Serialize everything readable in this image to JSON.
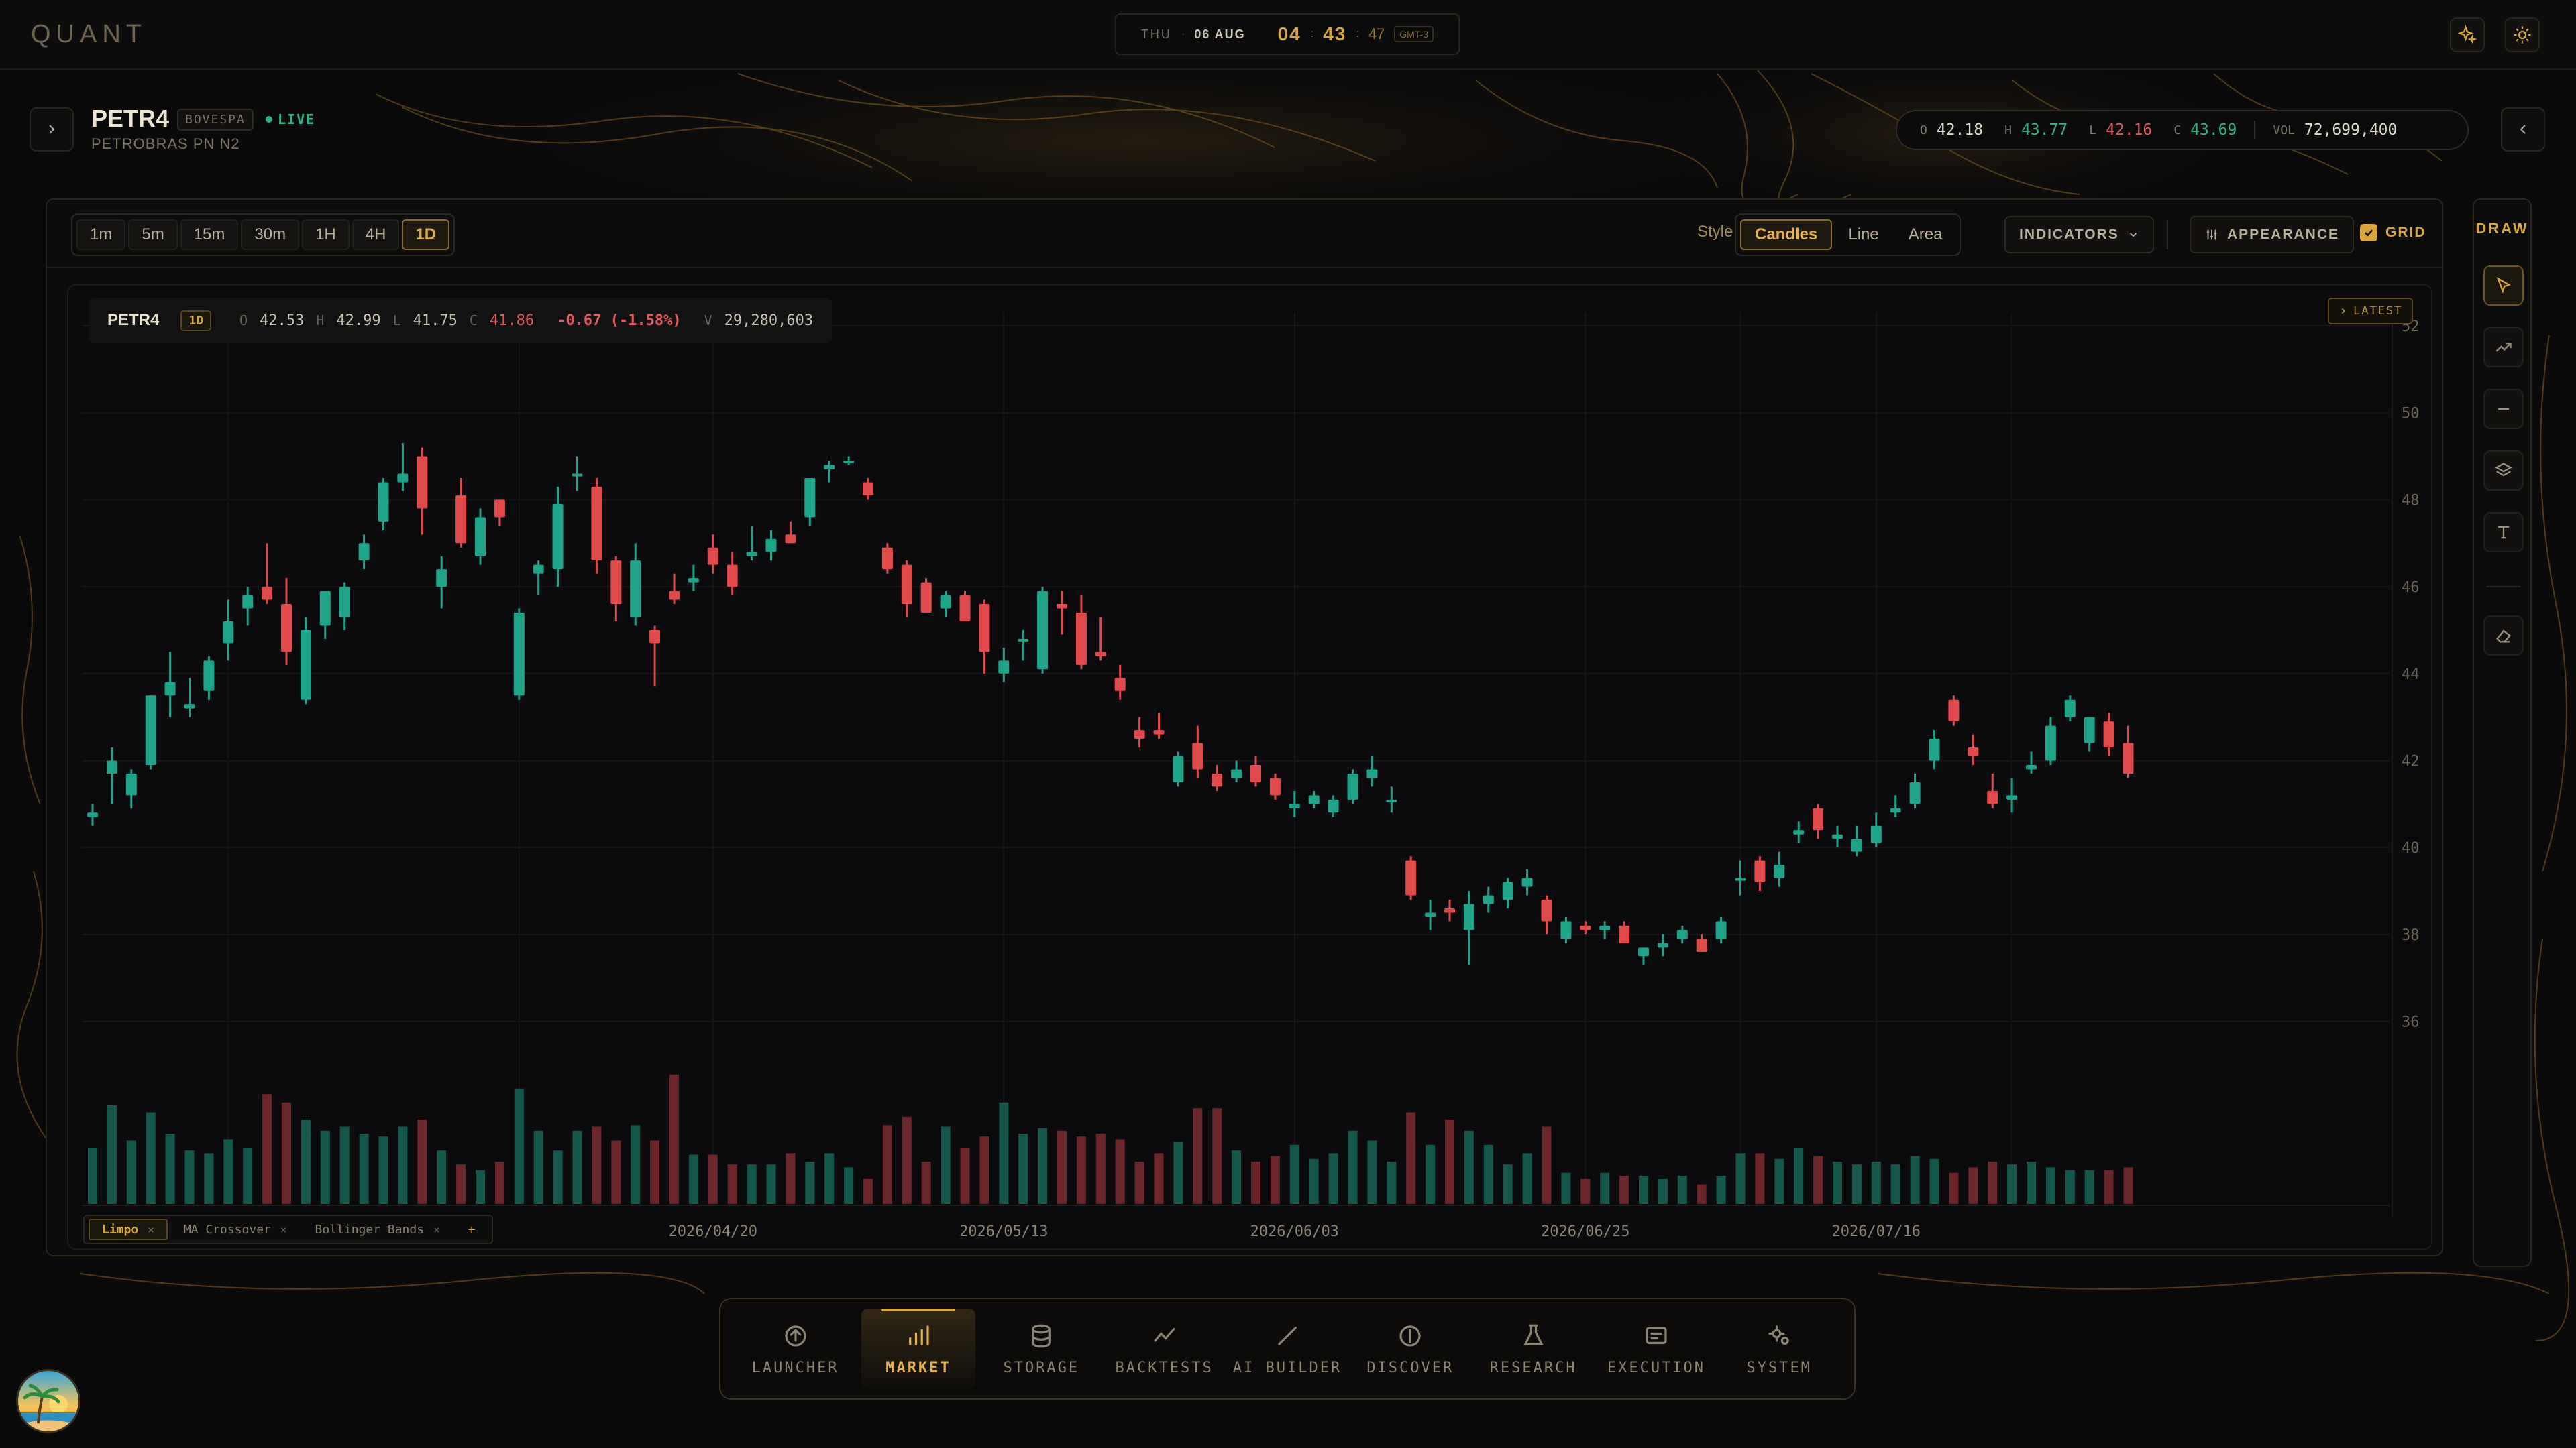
{
  "app": {
    "logo": "QUANT"
  },
  "clock": {
    "day": "THU",
    "date": "06 AUG",
    "hour": "04",
    "minute": "43",
    "second": "47",
    "tz": "GMT-3"
  },
  "ticker": {
    "symbol": "PETR4",
    "exchange": "BOVESPA",
    "status": "LIVE",
    "description": "PETROBRAS PN N2",
    "summary": {
      "o_label": "O",
      "o": "42.18",
      "h_label": "H",
      "h": "43.77",
      "l_label": "L",
      "l": "42.16",
      "c_label": "C",
      "c": "43.69",
      "vol_label": "VOL",
      "vol": "72,699,400"
    }
  },
  "toolbar": {
    "timeframes": [
      "1m",
      "5m",
      "15m",
      "30m",
      "1H",
      "4H",
      "1D"
    ],
    "active_timeframe": "1D",
    "style_label": "Style",
    "styles": [
      "Candles",
      "Line",
      "Area"
    ],
    "active_style": "Candles",
    "indicators_label": "INDICATORS",
    "appearance_label": "APPEARANCE",
    "grid_label": "GRID",
    "grid_on": true
  },
  "legend": {
    "symbol": "PETR4",
    "tf": "1D",
    "o_label": "O",
    "o": "42.53",
    "h_label": "H",
    "h": "42.99",
    "l_label": "L",
    "l": "41.75",
    "c_label": "C",
    "c": "41.86",
    "change": "-0.67 (-1.58%)",
    "v_label": "V",
    "v": "29,280,603"
  },
  "latest_label": "LATEST",
  "studies": [
    {
      "name": "Limpo",
      "active": true
    },
    {
      "name": "MA Crossover",
      "active": false
    },
    {
      "name": "Bollinger Bands",
      "active": false
    }
  ],
  "studies_add": "+",
  "draw": {
    "title": "DRAW",
    "tools": [
      "cursor-icon",
      "trend-line-icon",
      "horizontal-line-icon",
      "layers-icon",
      "text-icon",
      "eraser-icon"
    ]
  },
  "dock": [
    {
      "label": "LAUNCHER",
      "icon": "launcher-icon"
    },
    {
      "label": "MARKET",
      "icon": "market-icon",
      "active": true
    },
    {
      "label": "STORAGE",
      "icon": "storage-icon"
    },
    {
      "label": "BACKTESTS",
      "icon": "backtests-icon"
    },
    {
      "label": "AI BUILDER",
      "icon": "ai-builder-icon"
    },
    {
      "label": "DISCOVER",
      "icon": "discover-icon"
    },
    {
      "label": "RESEARCH",
      "icon": "research-icon"
    },
    {
      "label": "EXECUTION",
      "icon": "execution-icon"
    },
    {
      "label": "SYSTEM",
      "icon": "system-icon"
    }
  ],
  "colors": {
    "accent": "#d8a63d",
    "up": "#1fa38a",
    "down": "#e04a4a",
    "bg": "#0a0a0b"
  },
  "chart_data": {
    "type": "candlestick",
    "y_ticks": [
      36,
      38,
      40,
      42,
      44,
      46,
      48,
      50,
      52
    ],
    "ylim": [
      35.5,
      52
    ],
    "x_ticks": [
      {
        "label": "2026/04/20",
        "index": 32
      },
      {
        "label": "2026/05/13",
        "index": 47
      },
      {
        "label": "2026/06/03",
        "index": 62
      },
      {
        "label": "2026/06/25",
        "index": 77
      },
      {
        "label": "2026/07/16",
        "index": 92
      }
    ],
    "grid": true,
    "volume_scale_max": 100,
    "candles": [
      [
        40.7,
        41.0,
        40.5,
        40.8,
        40
      ],
      [
        41.7,
        42.3,
        41.0,
        42.0,
        70
      ],
      [
        41.2,
        41.8,
        40.9,
        41.7,
        45
      ],
      [
        41.9,
        43.5,
        41.8,
        43.5,
        65
      ],
      [
        43.5,
        44.5,
        43.0,
        43.8,
        50
      ],
      [
        43.2,
        43.9,
        43.0,
        43.3,
        38
      ],
      [
        43.6,
        44.4,
        43.4,
        44.3,
        36
      ],
      [
        44.7,
        45.7,
        44.3,
        45.2,
        46
      ],
      [
        45.5,
        46.0,
        45.1,
        45.8,
        40
      ],
      [
        46.0,
        47.0,
        45.6,
        45.7,
        78
      ],
      [
        45.6,
        46.2,
        44.2,
        44.5,
        72
      ],
      [
        43.4,
        45.3,
        43.3,
        45.0,
        60
      ],
      [
        45.1,
        45.9,
        44.8,
        45.9,
        52
      ],
      [
        45.3,
        46.1,
        45.0,
        46.0,
        55
      ],
      [
        46.6,
        47.2,
        46.4,
        47.0,
        50
      ],
      [
        47.5,
        48.5,
        47.3,
        48.4,
        48
      ],
      [
        48.4,
        49.3,
        48.2,
        48.6,
        55
      ],
      [
        49.0,
        49.2,
        47.2,
        47.8,
        60
      ],
      [
        46.0,
        46.7,
        45.5,
        46.4,
        38
      ],
      [
        48.1,
        48.5,
        46.9,
        47.0,
        28
      ],
      [
        46.7,
        47.8,
        46.5,
        47.6,
        24
      ],
      [
        48.0,
        48.0,
        47.4,
        47.6,
        30
      ],
      [
        43.5,
        45.5,
        43.4,
        45.4,
        82
      ],
      [
        46.3,
        46.6,
        45.8,
        46.5,
        52
      ],
      [
        46.4,
        48.3,
        46.0,
        47.9,
        38
      ],
      [
        48.6,
        49.0,
        48.2,
        48.6,
        52
      ],
      [
        48.3,
        48.5,
        46.3,
        46.6,
        55
      ],
      [
        46.6,
        46.7,
        45.2,
        45.6,
        45
      ],
      [
        45.3,
        47.0,
        45.1,
        46.6,
        56
      ],
      [
        45.0,
        45.1,
        43.7,
        44.7,
        45
      ],
      [
        45.9,
        46.3,
        45.6,
        45.7,
        92
      ],
      [
        46.1,
        46.5,
        45.9,
        46.2,
        35
      ],
      [
        46.9,
        47.2,
        46.3,
        46.5,
        35
      ],
      [
        46.5,
        46.8,
        45.8,
        46.0,
        28
      ],
      [
        46.7,
        47.4,
        46.6,
        46.8,
        28
      ],
      [
        46.8,
        47.3,
        46.6,
        47.1,
        28
      ],
      [
        47.2,
        47.5,
        47.0,
        47.0,
        36
      ],
      [
        47.6,
        48.5,
        47.4,
        48.5,
        30
      ],
      [
        48.7,
        48.9,
        48.4,
        48.8,
        36
      ],
      [
        48.9,
        49.0,
        48.8,
        48.9,
        26
      ],
      [
        48.4,
        48.5,
        48.0,
        48.1,
        18
      ],
      [
        46.9,
        47.0,
        46.3,
        46.4,
        56
      ],
      [
        46.5,
        46.6,
        45.3,
        45.6,
        62
      ],
      [
        46.1,
        46.2,
        45.4,
        45.4,
        30
      ],
      [
        45.5,
        45.9,
        45.3,
        45.8,
        55
      ],
      [
        45.8,
        45.9,
        45.2,
        45.2,
        40
      ],
      [
        45.6,
        45.7,
        44.0,
        44.5,
        48
      ],
      [
        44.0,
        44.6,
        43.8,
        44.3,
        72
      ],
      [
        44.8,
        45.0,
        44.3,
        44.8,
        50
      ],
      [
        44.1,
        46.0,
        44.0,
        45.9,
        54
      ],
      [
        45.6,
        45.9,
        44.9,
        45.5,
        52
      ],
      [
        45.4,
        45.8,
        44.1,
        44.2,
        48
      ],
      [
        44.5,
        45.3,
        44.3,
        44.4,
        50
      ],
      [
        43.9,
        44.2,
        43.4,
        43.6,
        46
      ],
      [
        42.7,
        43.0,
        42.3,
        42.5,
        30
      ],
      [
        42.7,
        43.1,
        42.5,
        42.6,
        36
      ],
      [
        41.5,
        42.2,
        41.4,
        42.1,
        44
      ],
      [
        42.4,
        42.8,
        41.6,
        41.8,
        68
      ],
      [
        41.7,
        41.9,
        41.3,
        41.4,
        68
      ],
      [
        41.6,
        42.0,
        41.5,
        41.8,
        38
      ],
      [
        41.9,
        42.1,
        41.4,
        41.5,
        30
      ],
      [
        41.6,
        41.7,
        41.1,
        41.2,
        34
      ],
      [
        40.9,
        41.3,
        40.7,
        41.0,
        42
      ],
      [
        41.0,
        41.3,
        40.9,
        41.2,
        32
      ],
      [
        40.8,
        41.2,
        40.7,
        41.1,
        36
      ],
      [
        41.1,
        41.8,
        41.0,
        41.7,
        52
      ],
      [
        41.6,
        42.1,
        41.4,
        41.8,
        45
      ],
      [
        41.1,
        41.4,
        40.8,
        41.1,
        30
      ],
      [
        39.7,
        39.8,
        38.8,
        38.9,
        65
      ],
      [
        38.4,
        38.8,
        38.1,
        38.5,
        42
      ],
      [
        38.6,
        38.8,
        38.3,
        38.5,
        60
      ],
      [
        38.1,
        39.0,
        37.3,
        38.7,
        52
      ],
      [
        38.7,
        39.1,
        38.5,
        38.9,
        42
      ],
      [
        38.8,
        39.3,
        38.6,
        39.2,
        28
      ],
      [
        39.1,
        39.5,
        38.9,
        39.3,
        36
      ],
      [
        38.8,
        38.9,
        38.0,
        38.3,
        55
      ],
      [
        37.9,
        38.4,
        37.8,
        38.3,
        22
      ],
      [
        38.2,
        38.3,
        38.0,
        38.1,
        18
      ],
      [
        38.1,
        38.3,
        37.9,
        38.2,
        22
      ],
      [
        38.2,
        38.3,
        37.8,
        37.8,
        20
      ],
      [
        37.5,
        37.7,
        37.3,
        37.7,
        20
      ],
      [
        37.7,
        38.0,
        37.5,
        37.8,
        18
      ],
      [
        37.9,
        38.2,
        37.8,
        38.1,
        20
      ],
      [
        37.9,
        38.0,
        37.6,
        37.6,
        14
      ],
      [
        37.9,
        38.4,
        37.8,
        38.3,
        20
      ],
      [
        39.3,
        39.7,
        38.9,
        39.3,
        36
      ],
      [
        39.7,
        39.8,
        39.0,
        39.2,
        36
      ],
      [
        39.3,
        39.9,
        39.1,
        39.6,
        32
      ],
      [
        40.3,
        40.6,
        40.1,
        40.4,
        40
      ],
      [
        40.9,
        41.0,
        40.2,
        40.4,
        34
      ],
      [
        40.2,
        40.5,
        40.0,
        40.3,
        30
      ],
      [
        39.9,
        40.5,
        39.8,
        40.2,
        28
      ],
      [
        40.1,
        40.8,
        40.0,
        40.5,
        30
      ],
      [
        40.8,
        41.2,
        40.7,
        40.9,
        28
      ],
      [
        41.0,
        41.7,
        40.9,
        41.5,
        34
      ],
      [
        42.0,
        42.7,
        41.8,
        42.5,
        32
      ],
      [
        43.4,
        43.5,
        42.8,
        42.9,
        22
      ],
      [
        42.3,
        42.6,
        41.9,
        42.1,
        26
      ],
      [
        41.3,
        41.7,
        40.9,
        41.0,
        30
      ],
      [
        41.1,
        41.6,
        40.8,
        41.2,
        28
      ],
      [
        41.8,
        42.2,
        41.7,
        41.9,
        30
      ],
      [
        42.0,
        43.0,
        41.9,
        42.8,
        26
      ],
      [
        43.0,
        43.5,
        42.9,
        43.4,
        24
      ],
      [
        42.4,
        43.0,
        42.2,
        43.0,
        24
      ],
      [
        42.9,
        43.1,
        42.1,
        42.3,
        24
      ],
      [
        42.4,
        42.8,
        41.6,
        41.7,
        26
      ]
    ]
  }
}
